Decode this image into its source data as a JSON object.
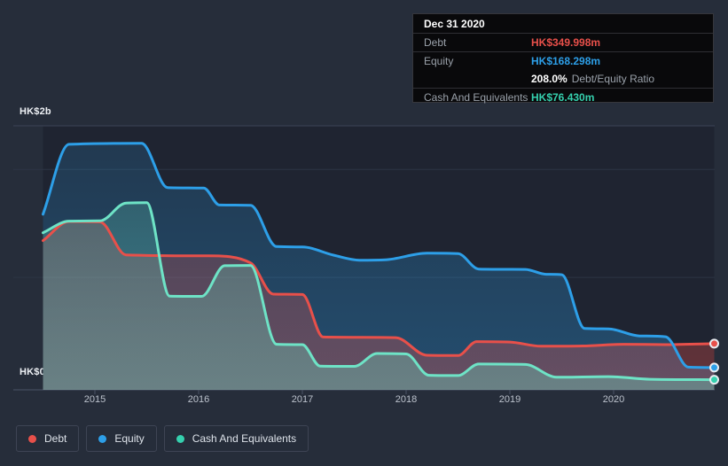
{
  "tooltip": {
    "date": "Dec 31 2020",
    "debt": {
      "label": "Debt",
      "value": "HK$349.998m"
    },
    "equity": {
      "label": "Equity",
      "value": "HK$168.298m"
    },
    "ratio": {
      "value": "208.0%",
      "label": "Debt/Equity Ratio"
    },
    "cash": {
      "label": "Cash And Equivalents",
      "value": "HK$76.430m"
    }
  },
  "legend": {
    "items": [
      {
        "label": "Debt"
      },
      {
        "label": "Equity"
      },
      {
        "label": "Cash And Equivalents"
      }
    ]
  },
  "colors": {
    "page_bg": "#262d3a",
    "plot_bg": "#1f2431",
    "grid_strong": "#3c4456",
    "grid_faint": "#2c3444",
    "axis": "#4b5465",
    "dot_ring": "#e8ecf1",
    "debt": "#e8504a",
    "equity": "#2d9fe8",
    "cash_line": "#6ee3c6",
    "cash_accent": "#35d0ae"
  },
  "chart_data": {
    "type": "area",
    "unit": "HK$ millions",
    "y_axis": {
      "top_label": "HK$2b",
      "bottom_label": "HK$0",
      "max": 2000,
      "min": 0
    },
    "x_axis": {
      "years": [
        2015,
        2016,
        2017,
        2018,
        2019,
        2020
      ],
      "start": 2014.5,
      "end": 2020.97
    },
    "gridlines": [
      {
        "value": 2000,
        "label": "HK$2b",
        "style": "strong"
      },
      {
        "value": 1670,
        "style": "faint"
      },
      {
        "value": 852,
        "style": "faint"
      },
      {
        "value": 0,
        "label": "HK$0",
        "style": "axis"
      }
    ],
    "series": [
      {
        "name": "Debt",
        "color": "#e8504a",
        "dot_color": "#e8504a",
        "final_value": 349.998,
        "points": [
          [
            2014.5,
            1130
          ],
          [
            2014.75,
            1275
          ],
          [
            2015.05,
            1272
          ],
          [
            2015.3,
            1022
          ],
          [
            2016.1,
            1015
          ],
          [
            2016.5,
            962
          ],
          [
            2016.72,
            725
          ],
          [
            2017.0,
            722
          ],
          [
            2017.2,
            400
          ],
          [
            2017.55,
            398
          ],
          [
            2017.9,
            395
          ],
          [
            2018.2,
            262
          ],
          [
            2018.5,
            260
          ],
          [
            2018.68,
            365
          ],
          [
            2019.0,
            362
          ],
          [
            2019.3,
            330
          ],
          [
            2019.7,
            332
          ],
          [
            2020.1,
            345
          ],
          [
            2020.5,
            342
          ],
          [
            2020.97,
            349.998
          ]
        ]
      },
      {
        "name": "Equity",
        "color": "#2d9fe8",
        "dot_color": "#2d9fe8",
        "final_value": 168.298,
        "points": [
          [
            2014.5,
            1330
          ],
          [
            2014.75,
            1860
          ],
          [
            2015.45,
            1868
          ],
          [
            2015.7,
            1532
          ],
          [
            2016.05,
            1528
          ],
          [
            2016.2,
            1400
          ],
          [
            2016.5,
            1398
          ],
          [
            2016.75,
            1085
          ],
          [
            2017.0,
            1082
          ],
          [
            2017.3,
            1020
          ],
          [
            2017.55,
            982
          ],
          [
            2017.8,
            985
          ],
          [
            2018.2,
            1035
          ],
          [
            2018.5,
            1032
          ],
          [
            2018.7,
            915
          ],
          [
            2019.15,
            912
          ],
          [
            2019.35,
            875
          ],
          [
            2019.5,
            872
          ],
          [
            2019.72,
            465
          ],
          [
            2019.95,
            462
          ],
          [
            2020.25,
            408
          ],
          [
            2020.5,
            402
          ],
          [
            2020.72,
            172
          ],
          [
            2020.97,
            168.298
          ]
        ]
      },
      {
        "name": "Cash And Equivalents",
        "color": "#6ee3c6",
        "dot_color": "#35d0ae",
        "final_value": 76.43,
        "points": [
          [
            2014.5,
            1190
          ],
          [
            2014.75,
            1278
          ],
          [
            2015.05,
            1280
          ],
          [
            2015.3,
            1415
          ],
          [
            2015.5,
            1418
          ],
          [
            2015.72,
            710
          ],
          [
            2016.03,
            708
          ],
          [
            2016.25,
            940
          ],
          [
            2016.5,
            942
          ],
          [
            2016.75,
            345
          ],
          [
            2017.0,
            342
          ],
          [
            2017.17,
            180
          ],
          [
            2017.5,
            178
          ],
          [
            2017.72,
            275
          ],
          [
            2018.0,
            272
          ],
          [
            2018.22,
            110
          ],
          [
            2018.5,
            108
          ],
          [
            2018.7,
            195
          ],
          [
            2019.15,
            192
          ],
          [
            2019.45,
            95
          ],
          [
            2019.95,
            100
          ],
          [
            2020.35,
            80
          ],
          [
            2020.97,
            76.43
          ]
        ]
      }
    ],
    "area_draw_order": [
      "Equity",
      "Debt",
      "Cash And Equivalents"
    ],
    "line_draw_order": [
      "Debt",
      "Equity",
      "Cash And Equivalents"
    ]
  }
}
